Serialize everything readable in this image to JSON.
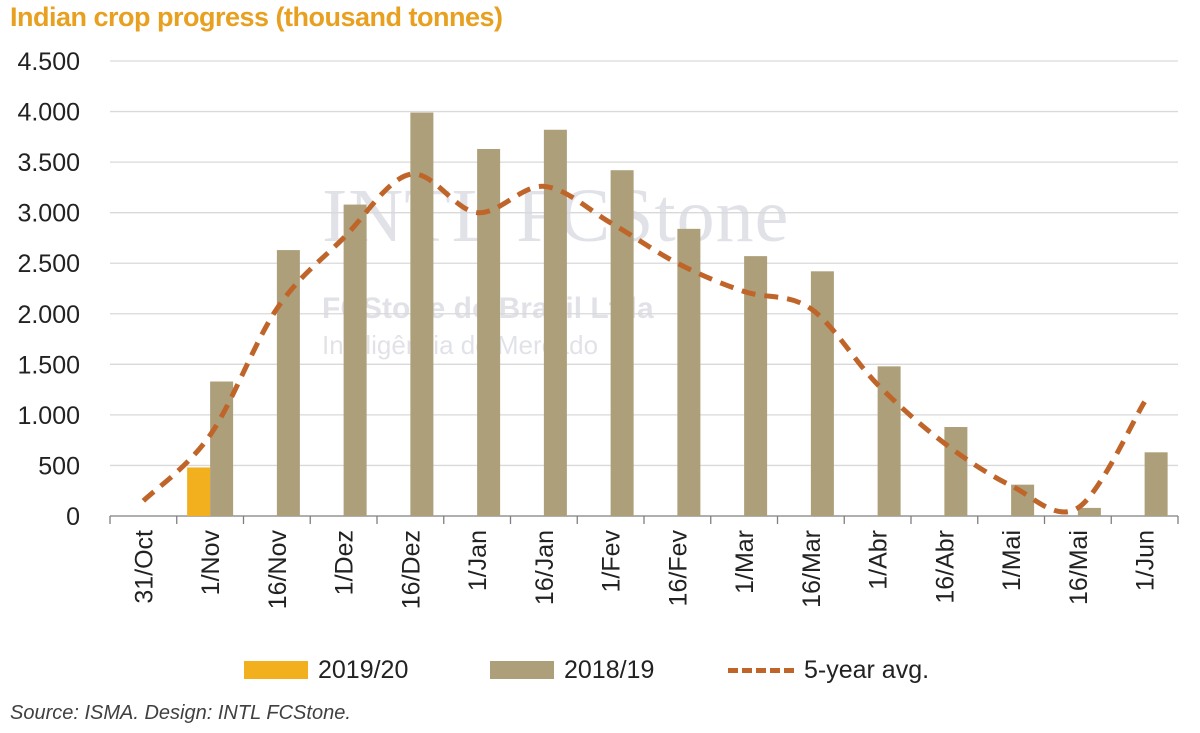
{
  "title": "Indian crop progress (thousand tonnes)",
  "source": "Source: ISMA. Design: INTL FCStone.",
  "colors": {
    "title": "#e8a020",
    "series_2019_20": "#f2b01e",
    "series_2018_19": "#ad9f79",
    "series_avg": "#c0652a",
    "gridline": "#d9d9d9",
    "axis": "#7f7f7f"
  },
  "watermark": {
    "brand": "INTL FCStone",
    "line1": "FCStone do Brasil Ltda",
    "line2": "Inteligência de Mercado"
  },
  "chart_data": {
    "type": "bar",
    "title": "Indian crop progress (thousand tonnes)",
    "categories": [
      "31/Oct",
      "1/Nov",
      "16/Nov",
      "1/Dez",
      "16/Dez",
      "1/Jan",
      "16/Jan",
      "1/Fev",
      "16/Fev",
      "1/Mar",
      "16/Mar",
      "1/Abr",
      "16/Abr",
      "1/Mai",
      "16/Mai",
      "1/Jun"
    ],
    "ylim": [
      0,
      4500
    ],
    "yticks": [
      0,
      500,
      1000,
      1500,
      2000,
      2500,
      3000,
      3500,
      4000,
      4500
    ],
    "ytick_labels": [
      "0",
      "500",
      "1.000",
      "1.500",
      "2.000",
      "2.500",
      "3.000",
      "3.500",
      "4.000",
      "4.500"
    ],
    "grid": true,
    "legend_position": "bottom",
    "series": [
      {
        "name": "2019/20",
        "kind": "bar",
        "values": [
          null,
          480,
          null,
          null,
          null,
          null,
          null,
          null,
          null,
          null,
          null,
          null,
          null,
          null,
          null,
          null
        ]
      },
      {
        "name": "2018/19",
        "kind": "bar",
        "values": [
          null,
          1330,
          2630,
          3080,
          3990,
          3630,
          3820,
          3420,
          2840,
          2570,
          2420,
          1480,
          880,
          310,
          80,
          630
        ]
      },
      {
        "name": "5-year avg.",
        "kind": "line",
        "style": "dashed",
        "values": [
          150,
          800,
          2050,
          2750,
          3380,
          3000,
          3260,
          2900,
          2500,
          2220,
          2050,
          1300,
          720,
          300,
          80,
          1130
        ]
      }
    ]
  }
}
